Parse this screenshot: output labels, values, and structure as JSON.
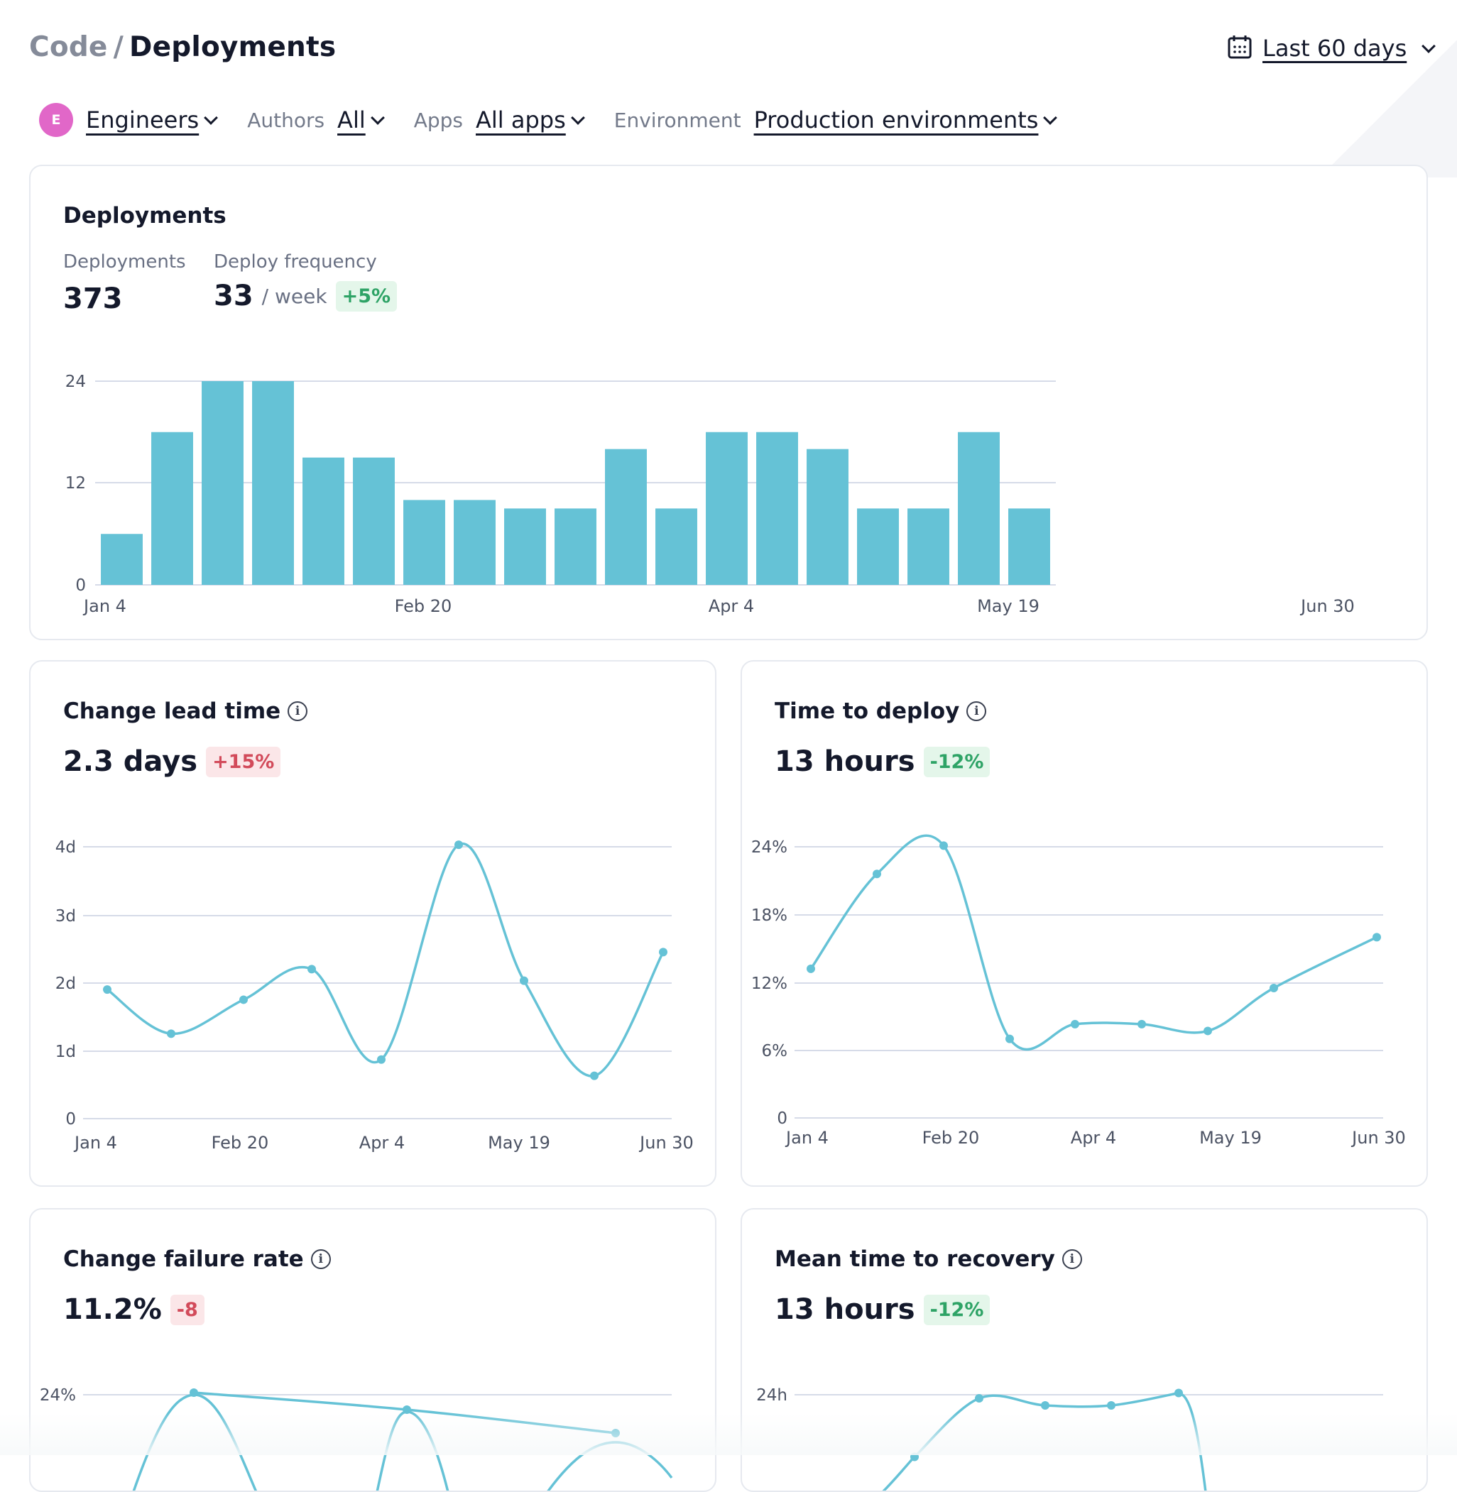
{
  "header": {
    "breadcrumb_root": "Code",
    "breadcrumb_sep": "/",
    "breadcrumb_current": "Deployments",
    "date_range": "Last 60 days"
  },
  "filters": {
    "team_initial": "E",
    "team": "Engineers",
    "authors_label": "Authors",
    "authors_value": "All",
    "apps_label": "Apps",
    "apps_value": "All apps",
    "env_label": "Environment",
    "env_value": "Production environments"
  },
  "colors": {
    "accent": "#65c2d6",
    "grid": "#d6dbe8",
    "good": "#2ea366",
    "bad": "#d24a5a",
    "avatar": "#e167c8"
  },
  "deployments": {
    "title": "Deployments",
    "deployments_label": "Deployments",
    "deployments_value": "373",
    "frequency_label": "Deploy frequency",
    "frequency_value": "33",
    "frequency_unit": "/ week",
    "frequency_change": "+5%"
  },
  "lead_time": {
    "title": "Change lead time",
    "value": "2.3 days",
    "change": "+15%"
  },
  "time_to_deploy": {
    "title": "Time to deploy",
    "value": "13 hours",
    "change": "-12%"
  },
  "failure_rate": {
    "title": "Change failure rate",
    "value": "11.2%",
    "change": "-8"
  },
  "mttr": {
    "title": "Mean time to recovery",
    "value": "13 hours",
    "change": "-12%"
  },
  "chart_data": [
    {
      "type": "bar",
      "title": "Deployments",
      "values": [
        6,
        18,
        24,
        24,
        15,
        15,
        10,
        10,
        9,
        9,
        16,
        9,
        18,
        18,
        16,
        9,
        9,
        18,
        9
      ],
      "x_tick_labels": [
        "Jan 4",
        "Feb 20",
        "Apr 4",
        "May 19",
        "Jun 30"
      ],
      "y_ticks": [
        "0",
        "12",
        "24"
      ],
      "ylim": [
        0,
        24
      ],
      "grid": true
    },
    {
      "type": "line",
      "title": "Change lead time",
      "y": [
        1.9,
        1.25,
        1.75,
        2.2,
        0.87,
        4.03,
        2.03,
        0.63,
        2.45
      ],
      "x_tick_labels": [
        "Jan 4",
        "Feb 20",
        "Apr 4",
        "May 19",
        "Jun 30"
      ],
      "y_ticks": [
        "0",
        "1d",
        "2d",
        "3d",
        "4d"
      ],
      "ylim": [
        0,
        4
      ],
      "grid": true
    },
    {
      "type": "line",
      "title": "Time to deploy",
      "y": [
        13.2,
        21.6,
        24.1,
        7,
        8.3,
        8.3,
        7.7,
        11.5,
        16
      ],
      "x_tick_labels": [
        "Jan 4",
        "Feb 20",
        "Apr 4",
        "May 19",
        "Jun 30"
      ],
      "y_ticks": [
        "0",
        "6%",
        "12%",
        "18%",
        "24%"
      ],
      "ylim": [
        0,
        24
      ],
      "grid": true
    },
    {
      "type": "line",
      "title": "Change failure rate",
      "y": [
        24.1,
        23.3,
        22.2
      ],
      "y_ticks": [
        "24%"
      ],
      "grid": true
    },
    {
      "type": "line",
      "title": "Mean time to recovery",
      "y": [
        20.5,
        23.8,
        23.4,
        23.4,
        24.1
      ],
      "y_ticks": [
        "24h"
      ],
      "grid": true
    }
  ]
}
